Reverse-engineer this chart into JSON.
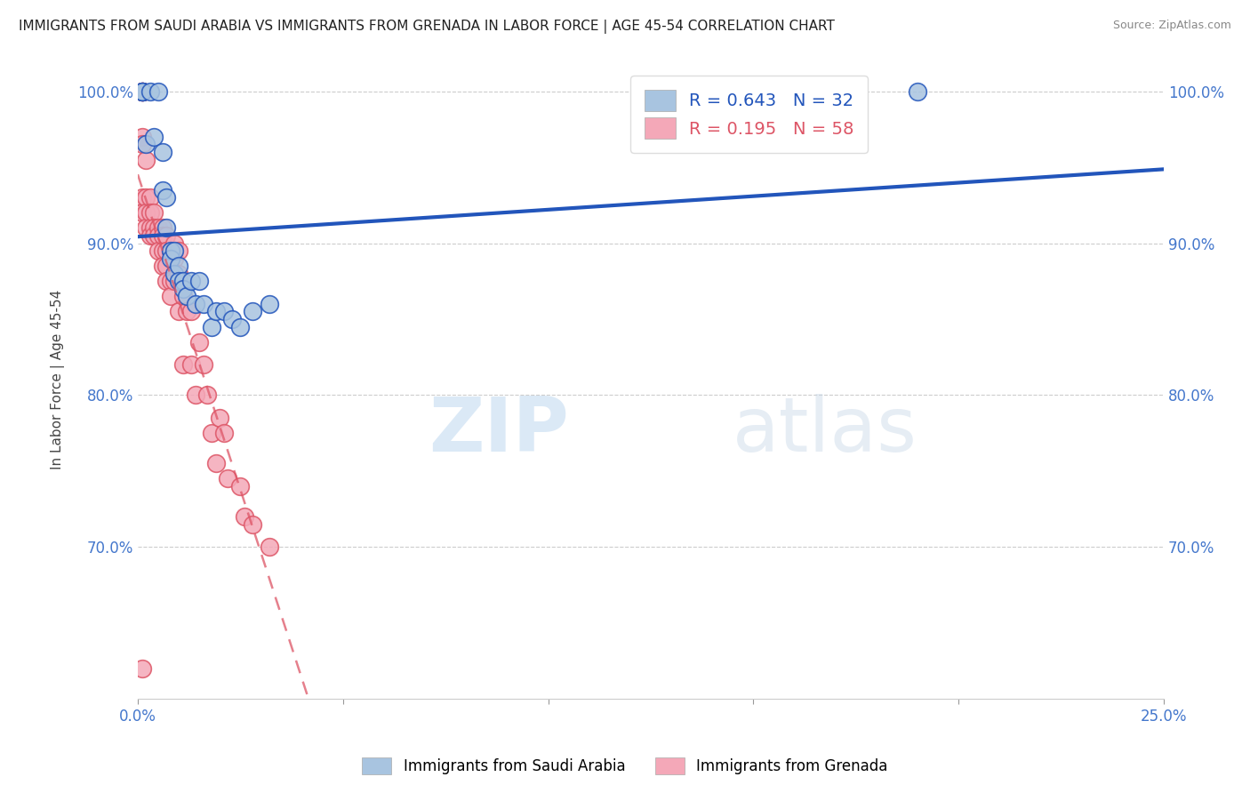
{
  "title": "IMMIGRANTS FROM SAUDI ARABIA VS IMMIGRANTS FROM GRENADA IN LABOR FORCE | AGE 45-54 CORRELATION CHART",
  "source": "Source: ZipAtlas.com",
  "ylabel": "In Labor Force | Age 45-54",
  "xlim": [
    0.0,
    0.25
  ],
  "ylim": [
    0.6,
    1.02
  ],
  "yticks": [
    0.7,
    0.8,
    0.9,
    1.0
  ],
  "ytick_labels": [
    "70.0%",
    "80.0%",
    "90.0%",
    "100.0%"
  ],
  "xticks": [
    0.0,
    0.05,
    0.1,
    0.15,
    0.2,
    0.25
  ],
  "xtick_labels": [
    "0.0%",
    "",
    "",
    "",
    "",
    "25.0%"
  ],
  "r_saudi": 0.643,
  "n_saudi": 32,
  "r_grenada": 0.195,
  "n_grenada": 58,
  "color_saudi": "#a8c4e0",
  "color_grenada": "#f4a8b8",
  "line_color_saudi": "#2255bb",
  "line_color_grenada": "#dd5566",
  "watermark_zip": "ZIP",
  "watermark_atlas": "atlas",
  "legend_label_saudi": "Immigrants from Saudi Arabia",
  "legend_label_grenada": "Immigrants from Grenada",
  "saudi_x": [
    0.001,
    0.001,
    0.001,
    0.002,
    0.003,
    0.004,
    0.005,
    0.006,
    0.006,
    0.007,
    0.007,
    0.008,
    0.008,
    0.009,
    0.009,
    0.01,
    0.01,
    0.011,
    0.011,
    0.012,
    0.013,
    0.014,
    0.015,
    0.016,
    0.018,
    0.019,
    0.021,
    0.023,
    0.025,
    0.028,
    0.032,
    0.19
  ],
  "saudi_y": [
    1.0,
    1.0,
    1.0,
    0.965,
    1.0,
    0.97,
    1.0,
    0.96,
    0.935,
    0.93,
    0.91,
    0.895,
    0.89,
    0.895,
    0.88,
    0.885,
    0.875,
    0.875,
    0.87,
    0.865,
    0.875,
    0.86,
    0.875,
    0.86,
    0.845,
    0.855,
    0.855,
    0.85,
    0.845,
    0.855,
    0.86,
    1.0
  ],
  "grenada_x": [
    0.001,
    0.001,
    0.001,
    0.001,
    0.001,
    0.001,
    0.001,
    0.001,
    0.002,
    0.002,
    0.002,
    0.002,
    0.003,
    0.003,
    0.003,
    0.003,
    0.004,
    0.004,
    0.004,
    0.005,
    0.005,
    0.005,
    0.006,
    0.006,
    0.006,
    0.006,
    0.007,
    0.007,
    0.007,
    0.007,
    0.008,
    0.008,
    0.008,
    0.009,
    0.009,
    0.009,
    0.01,
    0.01,
    0.01,
    0.011,
    0.011,
    0.012,
    0.013,
    0.013,
    0.014,
    0.015,
    0.016,
    0.017,
    0.018,
    0.019,
    0.02,
    0.021,
    0.022,
    0.025,
    0.026,
    0.028,
    0.032,
    0.001
  ],
  "grenada_y": [
    1.0,
    1.0,
    1.0,
    1.0,
    0.97,
    0.965,
    0.93,
    0.92,
    0.955,
    0.93,
    0.92,
    0.91,
    0.93,
    0.92,
    0.91,
    0.905,
    0.92,
    0.91,
    0.905,
    0.91,
    0.905,
    0.895,
    0.91,
    0.905,
    0.895,
    0.885,
    0.905,
    0.895,
    0.885,
    0.875,
    0.895,
    0.875,
    0.865,
    0.9,
    0.89,
    0.875,
    0.895,
    0.88,
    0.855,
    0.865,
    0.82,
    0.855,
    0.855,
    0.82,
    0.8,
    0.835,
    0.82,
    0.8,
    0.775,
    0.755,
    0.785,
    0.775,
    0.745,
    0.74,
    0.72,
    0.715,
    0.7,
    0.62
  ]
}
